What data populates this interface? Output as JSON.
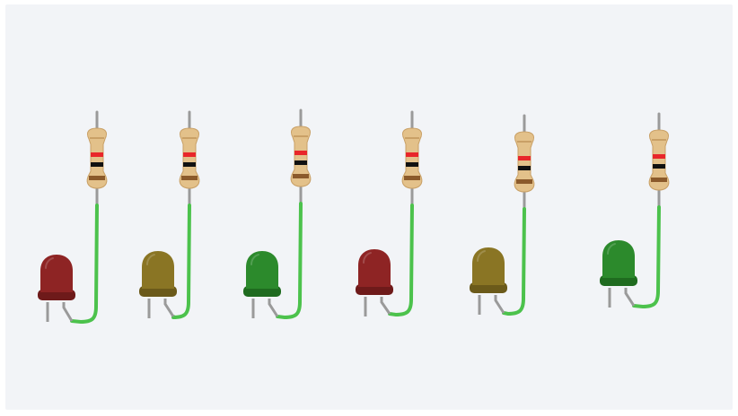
{
  "canvas": {
    "background": "#f2f4f7"
  },
  "wire_color": "#4cc24c",
  "lead_color": "#9a9a9a",
  "resistor": {
    "body_color": "#e3c18a",
    "bands": [
      "#c9a066",
      "#e8262a",
      "#111111",
      "#8b5a2b"
    ]
  },
  "components": [
    {
      "id": "led-1",
      "led_color": "red",
      "led_fill": "#8e2424",
      "led_rim": "#6e1a1a"
    },
    {
      "id": "led-2",
      "led_color": "yellow",
      "led_fill": "#8a7524",
      "led_rim": "#6b5a1a"
    },
    {
      "id": "led-3",
      "led_color": "green",
      "led_fill": "#2c8a2c",
      "led_rim": "#1f6b1f"
    },
    {
      "id": "led-4",
      "led_color": "red",
      "led_fill": "#8e2424",
      "led_rim": "#6e1a1a"
    },
    {
      "id": "led-5",
      "led_color": "yellow",
      "led_fill": "#8a7524",
      "led_rim": "#6b5a1a"
    },
    {
      "id": "led-6",
      "led_color": "green",
      "led_fill": "#2c8a2c",
      "led_rim": "#1f6b1f"
    }
  ]
}
